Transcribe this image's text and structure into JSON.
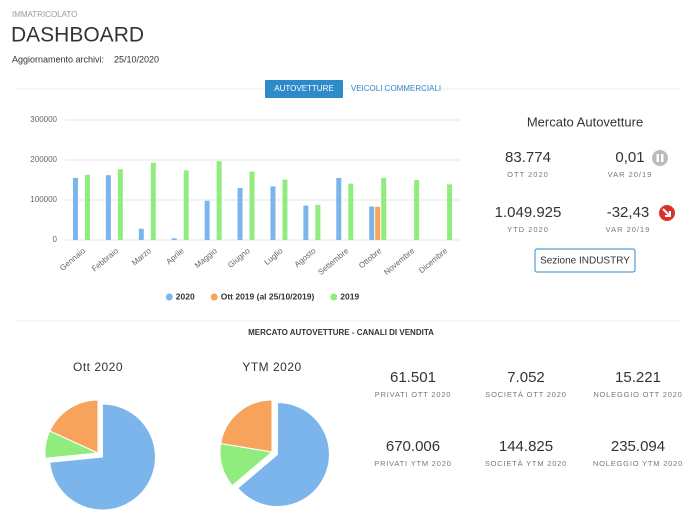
{
  "header": {
    "overline": "IMMATRICOLATO",
    "title": "DASHBOARD",
    "update_label": "Aggiornamento archivi:",
    "update_date": "25/10/2020"
  },
  "tabs": [
    "AUTOVETTURE",
    "VEICOLI COMMERCIALI"
  ],
  "market_panel": {
    "title": "Mercato Autovetture",
    "stats": [
      {
        "value": "83.774",
        "label": "OTT 2020"
      },
      {
        "value": "0,01",
        "label": "VAR 20/19"
      },
      {
        "value": "1.049.925",
        "label": "YTD 2020"
      },
      {
        "value": "-32,43",
        "label": "VAR 20/19"
      }
    ],
    "button": "Sezione INDUSTRY"
  },
  "channels": {
    "title": "MERCATO AUTOVETTURE - CANALI DI VENDITA",
    "stats": [
      {
        "value": "61.501",
        "label": "PRIVATI OTT 2020"
      },
      {
        "value": "7.052",
        "label": "SOCIETÀ OTT 2020"
      },
      {
        "value": "15.221",
        "label": "NOLEGGIO OTT 2020"
      },
      {
        "value": "670.006",
        "label": "PRIVATI YTM 2020"
      },
      {
        "value": "144.825",
        "label": "SOCIETÀ YTM 2020"
      },
      {
        "value": "235.094",
        "label": "NOLEGGIO YTM 2020"
      }
    ]
  },
  "chart_data": [
    {
      "type": "bar",
      "categories": [
        "Gennaio",
        "Febbraio",
        "Marzo",
        "Aprile",
        "Maggio",
        "Giugno",
        "Luglio",
        "Agosto",
        "Settembre",
        "Ottobre",
        "Novembre",
        "Dicembre"
      ],
      "series": [
        {
          "name": "2020",
          "color": "#7cb5ec",
          "values": [
            155000,
            162000,
            28000,
            4000,
            98000,
            130000,
            134000,
            86000,
            155000,
            83774,
            null,
            null
          ]
        },
        {
          "name": "Ott 2019 (al 25/10/2019)",
          "color": "#f7a35c",
          "values": [
            null,
            null,
            null,
            null,
            null,
            null,
            null,
            null,
            null,
            83000,
            null,
            null
          ]
        },
        {
          "name": "2019",
          "color": "#90ed7d",
          "values": [
            163000,
            177000,
            193000,
            174000,
            197000,
            171000,
            151000,
            88000,
            141000,
            155000,
            150000,
            139000
          ]
        }
      ],
      "ylim": [
        0,
        300000
      ],
      "yticks": [
        0,
        100000,
        200000,
        300000
      ],
      "grid": true,
      "legend": "bottom"
    },
    {
      "type": "pie",
      "title": "Ott 2020",
      "values": [
        61501,
        7052,
        15221
      ],
      "colors": [
        "#7cb5ec",
        "#90ed7d",
        "#f7a35c"
      ]
    },
    {
      "type": "pie",
      "title": "YTM 2020",
      "values": [
        670006,
        144825,
        235094
      ],
      "colors": [
        "#7cb5ec",
        "#90ed7d",
        "#f7a35c"
      ]
    }
  ]
}
